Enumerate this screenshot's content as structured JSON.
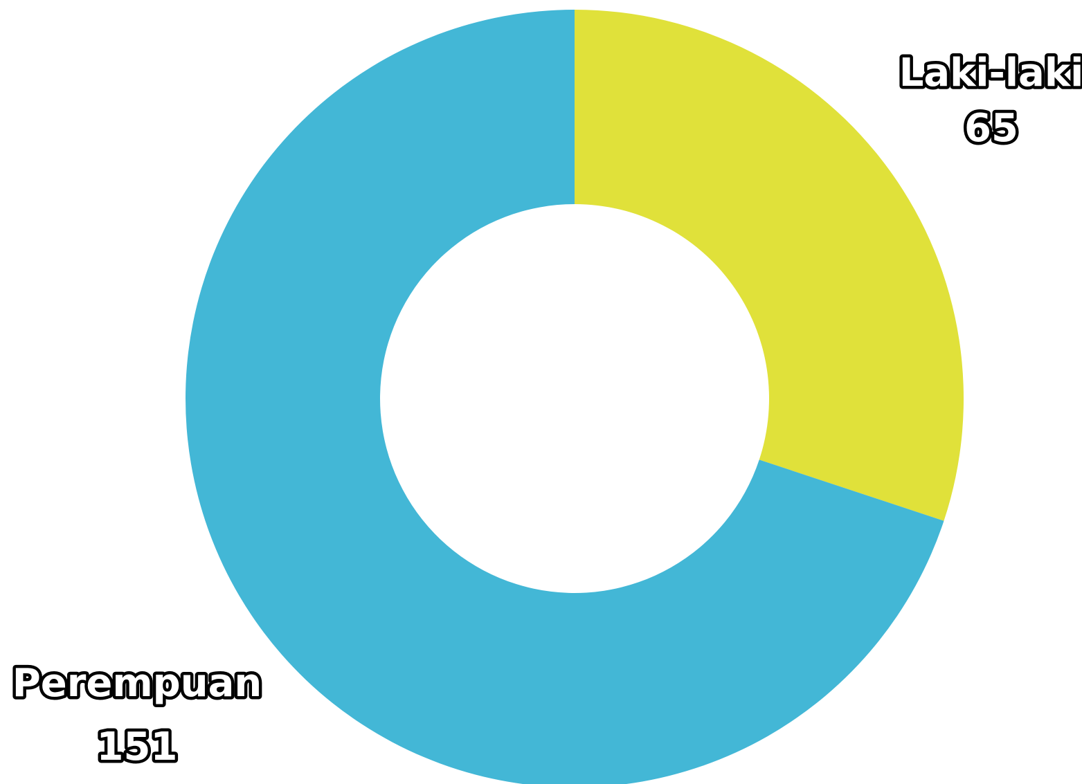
{
  "chart_data": {
    "type": "pie",
    "variant": "donut",
    "start_angle_deg": 0,
    "direction": "clockwise",
    "slices": [
      {
        "label": "Laki-laki",
        "value": 65,
        "color": "#e0e13a"
      },
      {
        "label": "Perempuan",
        "value": 151,
        "color": "#43b7d6"
      }
    ],
    "legend": "none",
    "labels_position": "outside"
  }
}
